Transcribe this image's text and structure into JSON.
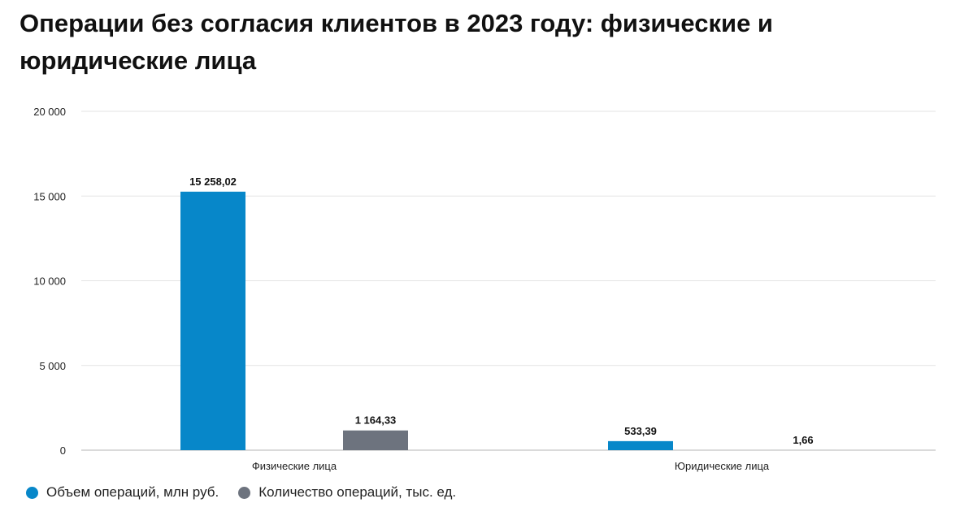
{
  "chart_data": {
    "type": "bar",
    "title": "Операции без согласия клиентов в 2023 году: физические и юридические лица",
    "categories": [
      "Физические лица",
      "Юридические лица"
    ],
    "series": [
      {
        "name": "Объем операций, млн руб.",
        "values": [
          15258.02,
          533.39
        ],
        "labels": [
          "15 258,02",
          "533,39"
        ],
        "color": "#0787c9"
      },
      {
        "name": "Количество операций, тыс. ед.",
        "values": [
          1164.33,
          1.66
        ],
        "labels": [
          "1 164,33",
          "1,66"
        ],
        "color": "#6d737e"
      }
    ],
    "ylim": [
      0,
      20000
    ],
    "yticks": [
      0,
      5000,
      10000,
      15000,
      20000
    ],
    "ytick_labels": [
      "0",
      "5 000",
      "10 000",
      "15 000",
      "20 000"
    ],
    "grid": true,
    "legend_position": "bottom-left",
    "xlabel": "",
    "ylabel": ""
  }
}
